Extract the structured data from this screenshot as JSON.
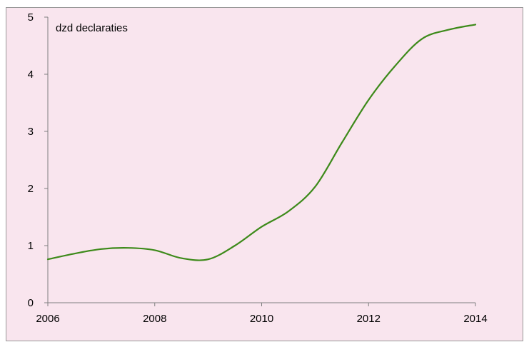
{
  "chart_data": {
    "type": "line",
    "title": "",
    "xlabel": "",
    "ylabel": "",
    "annotation": "dzd declaraties",
    "xlim": [
      2006,
      2014
    ],
    "ylim": [
      0,
      5
    ],
    "x_ticks": [
      "2006",
      "2008",
      "2010",
      "2012",
      "2014"
    ],
    "y_ticks": [
      "0",
      "1",
      "2",
      "3",
      "4",
      "5"
    ],
    "grid": false,
    "legend": "none",
    "series": [
      {
        "color": "#3d8a1a",
        "x": [
          2006.0,
          2006.5,
          2007.0,
          2007.5,
          2008.0,
          2008.5,
          2009.0,
          2009.5,
          2010.0,
          2010.5,
          2011.0,
          2011.5,
          2012.0,
          2012.5,
          2013.0,
          2013.5,
          2014.0
        ],
        "y": [
          0.76,
          0.86,
          0.94,
          0.96,
          0.92,
          0.78,
          0.76,
          1.0,
          1.33,
          1.6,
          2.03,
          2.8,
          3.55,
          4.15,
          4.62,
          4.78,
          4.87
        ]
      }
    ]
  },
  "colors": {
    "background": "#f9e5ee",
    "axis": "#808080",
    "frame": "#999999"
  }
}
